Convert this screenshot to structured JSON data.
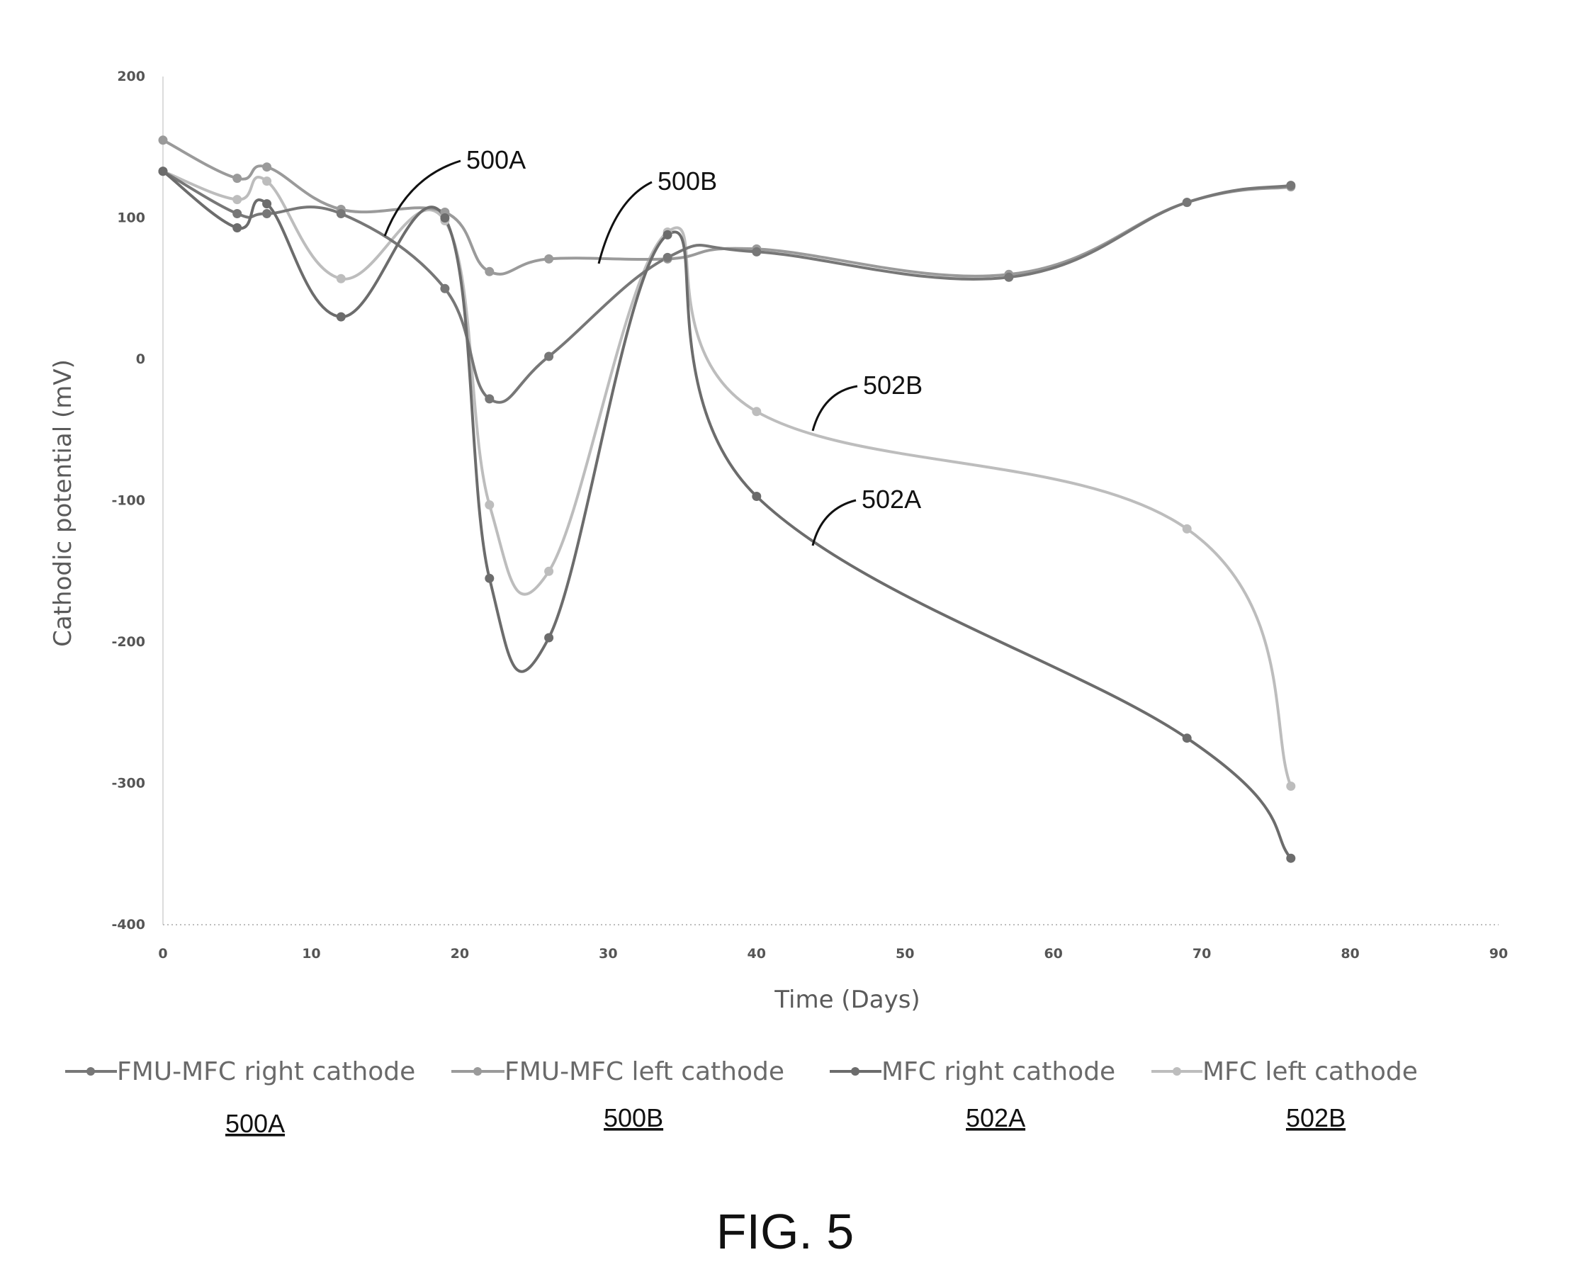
{
  "figure_label": "FIG. 5",
  "chart_data": {
    "type": "line",
    "title": "",
    "xlabel": "Time (Days)",
    "ylabel": "Cathodic potential (mV)",
    "xlim": [
      0,
      90
    ],
    "ylim": [
      -400,
      200
    ],
    "xticks": [
      "0",
      "10",
      "20",
      "30",
      "40",
      "50",
      "60",
      "70",
      "80",
      "90"
    ],
    "yticks": [
      "200",
      "100",
      "0",
      "-100",
      "-200",
      "-300",
      "-400"
    ],
    "grid": "dotted horizontal at -400 only",
    "legend_position": "bottom",
    "series": [
      {
        "name": "FMU-MFC right cathode",
        "ref": "500A",
        "color": "#777777",
        "x": [
          0,
          5,
          7,
          12,
          19,
          22,
          26,
          34,
          40,
          57,
          69,
          76
        ],
        "y": [
          133,
          103,
          103,
          103,
          50,
          -28,
          2,
          72,
          76,
          58,
          111,
          123
        ]
      },
      {
        "name": "FMU-MFC left cathode",
        "ref": "500B",
        "color": "#9a9a9a",
        "x": [
          0,
          5,
          7,
          12,
          19,
          22,
          26,
          34,
          40,
          57,
          69,
          76
        ],
        "y": [
          155,
          128,
          136,
          106,
          104,
          62,
          71,
          71,
          78,
          60,
          111,
          122
        ]
      },
      {
        "name": "MFC right cathode",
        "ref": "502A",
        "color": "#6c6c6c",
        "x": [
          0,
          5,
          7,
          12,
          19,
          22,
          26,
          34,
          40,
          69,
          76
        ],
        "y": [
          133,
          93,
          110,
          30,
          100,
          -155,
          -197,
          88,
          -97,
          -268,
          -353
        ]
      },
      {
        "name": "MFC left cathode",
        "ref": "502B",
        "color": "#bdbdbd",
        "x": [
          0,
          5,
          7,
          12,
          19,
          22,
          26,
          34,
          40,
          69,
          76
        ],
        "y": [
          133,
          113,
          126,
          57,
          98,
          -103,
          -150,
          90,
          -37,
          -120,
          -302
        ]
      }
    ],
    "annotations": [
      "500A",
      "500B",
      "502B",
      "502A"
    ]
  }
}
